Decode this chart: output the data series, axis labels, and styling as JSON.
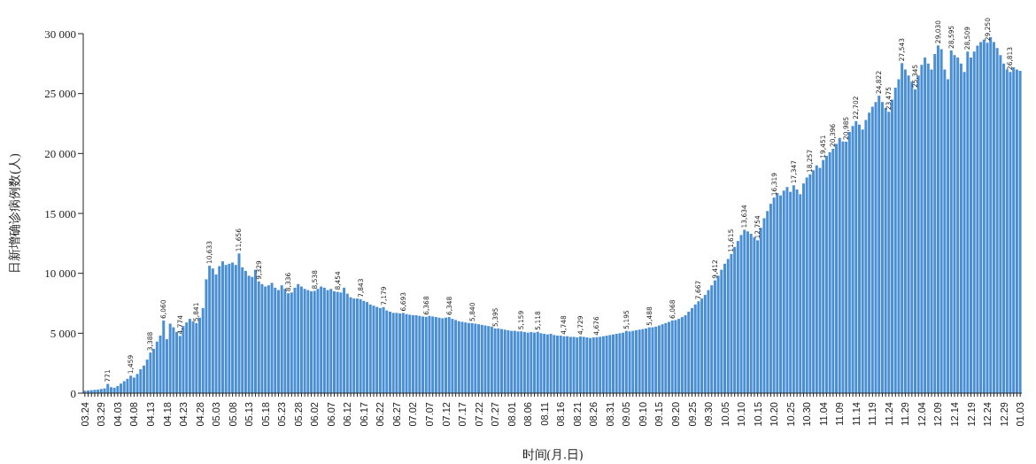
{
  "chart_data": {
    "type": "bar",
    "xlabel": "时间(月.日)",
    "ylabel": "日新增确诊病例数(人)",
    "color": "#4a8fd4",
    "grid": false,
    "ylim": [
      0,
      30000
    ],
    "yticks": [
      0,
      {
        "value": 5000,
        "label": "5 000"
      },
      {
        "value": 10000,
        "label": "10 000"
      },
      {
        "value": 15000,
        "label": "15 000"
      },
      {
        "value": 20000,
        "label": "20 000"
      },
      {
        "value": 25000,
        "label": "25 000"
      },
      {
        "value": 30000,
        "label": "30 000"
      }
    ],
    "categories": [
      "03.24",
      null,
      null,
      null,
      null,
      "03.29",
      null,
      null,
      null,
      null,
      "04.03",
      null,
      null,
      null,
      null,
      "04.08",
      null,
      null,
      null,
      null,
      "04.13",
      null,
      null,
      null,
      null,
      "04.18",
      null,
      null,
      null,
      null,
      "04.23",
      null,
      null,
      null,
      null,
      "04.28",
      null,
      null,
      null,
      null,
      "05.03",
      null,
      null,
      null,
      null,
      "05.08",
      null,
      null,
      null,
      null,
      "05.13",
      null,
      null,
      null,
      null,
      "05.18",
      null,
      null,
      null,
      null,
      "05.23",
      null,
      null,
      null,
      null,
      "05.28",
      null,
      null,
      null,
      null,
      "06.02",
      null,
      null,
      null,
      null,
      "06.07",
      null,
      null,
      null,
      null,
      "06.12",
      null,
      null,
      null,
      null,
      "06.17",
      null,
      null,
      null,
      null,
      "06.22",
      null,
      null,
      null,
      null,
      "06.27",
      null,
      null,
      null,
      null,
      "07.02",
      null,
      null,
      null,
      null,
      "07.07",
      null,
      null,
      null,
      null,
      "07.12",
      null,
      null,
      null,
      null,
      "07.17",
      null,
      null,
      null,
      null,
      "07.22",
      null,
      null,
      null,
      null,
      "07.27",
      null,
      null,
      null,
      null,
      "08.01",
      null,
      null,
      null,
      null,
      "08.06",
      null,
      null,
      null,
      null,
      "08.11",
      null,
      null,
      null,
      null,
      "08.16",
      null,
      null,
      null,
      null,
      "08.21",
      null,
      null,
      null,
      null,
      "08.26",
      null,
      null,
      null,
      null,
      "08.31",
      null,
      null,
      null,
      null,
      "09.05",
      null,
      null,
      null,
      null,
      "09.10",
      null,
      null,
      null,
      null,
      "09.15",
      null,
      null,
      null,
      null,
      "09.20",
      null,
      null,
      null,
      null,
      "09.25",
      null,
      null,
      null,
      null,
      "09.30",
      null,
      null,
      null,
      null,
      "10.05",
      null,
      null,
      null,
      null,
      "10.10",
      null,
      null,
      null,
      null,
      "10.15",
      null,
      null,
      null,
      null,
      "10.20",
      null,
      null,
      null,
      null,
      "10.25",
      null,
      null,
      null,
      null,
      "10.30",
      null,
      null,
      null,
      null,
      "11.04",
      null,
      null,
      null,
      null,
      "11.09",
      null,
      null,
      null,
      null,
      "11.14",
      null,
      null,
      null,
      null,
      "11.19",
      null,
      null,
      null,
      null,
      "11.24",
      null,
      null,
      null,
      null,
      "11.29",
      null,
      null,
      null,
      null,
      "12.04",
      null,
      null,
      null,
      null,
      "12.09",
      null,
      null,
      null,
      null,
      "12.14",
      null,
      null,
      null,
      null,
      "12.19",
      null,
      null,
      null,
      null,
      "12.24",
      null,
      null,
      null,
      null,
      "12.29",
      null,
      null,
      null,
      null,
      "01.03"
    ],
    "values": [
      200,
      220,
      250,
      280,
      300,
      350,
      400,
      771,
      500,
      450,
      600,
      800,
      1000,
      1200,
      1459,
      1300,
      1600,
      2000,
      2300,
      2800,
      3388,
      3700,
      4300,
      4800,
      6060,
      4500,
      5800,
      5500,
      5100,
      4774,
      5600,
      5900,
      6200,
      6000,
      5841,
      6300,
      7100,
      9500,
      10633,
      10400,
      9900,
      10600,
      11000,
      10700,
      10800,
      10900,
      10700,
      11656,
      10500,
      10200,
      9800,
      9700,
      10300,
      9329,
      9100,
      8900,
      9000,
      9200,
      8800,
      8600,
      9000,
      8700,
      8336,
      8400,
      8800,
      9100,
      8900,
      8700,
      8600,
      8500,
      8538,
      8700,
      8900,
      8800,
      8600,
      8700,
      8500,
      8454,
      8400,
      8800,
      8300,
      8000,
      7900,
      7900,
      7843,
      7700,
      7600,
      7400,
      7300,
      7200,
      7100,
      7179,
      6900,
      6800,
      6700,
      6700,
      6650,
      6693,
      6600,
      6550,
      6500,
      6500,
      6450,
      6400,
      6368,
      6450,
      6400,
      6350,
      6300,
      6250,
      6300,
      6348,
      6200,
      6100,
      6000,
      5950,
      5900,
      5850,
      5840,
      5800,
      5750,
      5700,
      5650,
      5600,
      5550,
      5395,
      5400,
      5350,
      5300,
      5250,
      5200,
      5200,
      5150,
      5159,
      5100,
      5050,
      5100,
      5050,
      5118,
      5000,
      4950,
      4900,
      4950,
      4850,
      4800,
      4800,
      4748,
      4750,
      4700,
      4700,
      4650,
      4729,
      4700,
      4650,
      4600,
      4650,
      4676,
      4700,
      4750,
      4800,
      4850,
      4900,
      4950,
      5000,
      5050,
      5195,
      5150,
      5200,
      5250,
      5300,
      5350,
      5400,
      5488,
      5500,
      5550,
      5650,
      5750,
      5850,
      5950,
      6068,
      6100,
      6200,
      6350,
      6500,
      6800,
      7100,
      7400,
      7667,
      7900,
      8200,
      8600,
      9000,
      9412,
      9800,
      10300,
      10800,
      11200,
      11615,
      12200,
      12700,
      13200,
      13634,
      13500,
      13300,
      13000,
      12754,
      13800,
      14600,
      15200,
      15800,
      16319,
      16700,
      16500,
      16900,
      17200,
      16800,
      17347,
      17000,
      16600,
      17500,
      18000,
      18257,
      18600,
      19000,
      18800,
      19451,
      19800,
      20100,
      20396,
      20800,
      21300,
      21000,
      20985,
      21800,
      22300,
      22702,
      22400,
      22000,
      22800,
      23400,
      23900,
      24300,
      24822,
      24300,
      23800,
      23475,
      24500,
      25500,
      26200,
      27543,
      27000,
      26500,
      26000,
      25345,
      26500,
      27400,
      28000,
      27500,
      27000,
      28300,
      29030,
      28700,
      27000,
      26200,
      28595,
      28200,
      28000,
      27500,
      26800,
      28509,
      28000,
      28500,
      29000,
      29300,
      29500,
      29250,
      29700,
      29300,
      28800,
      28200,
      27500,
      27000,
      26813,
      27200,
      27000,
      26900
    ],
    "value_labels": [
      null,
      null,
      null,
      null,
      null,
      null,
      null,
      "771",
      null,
      null,
      null,
      null,
      null,
      null,
      "1,459",
      null,
      null,
      null,
      null,
      null,
      "3,388",
      null,
      null,
      null,
      "6,060",
      null,
      null,
      null,
      null,
      "4,774",
      null,
      null,
      null,
      null,
      "5,841",
      null,
      null,
      null,
      "10,633",
      null,
      null,
      null,
      null,
      null,
      null,
      null,
      null,
      "11,656",
      null,
      null,
      null,
      null,
      null,
      "9,329",
      null,
      null,
      null,
      null,
      null,
      null,
      null,
      null,
      "8,336",
      null,
      null,
      null,
      null,
      null,
      null,
      null,
      "8,538",
      null,
      null,
      null,
      null,
      null,
      null,
      "8,454",
      null,
      null,
      null,
      null,
      null,
      null,
      "7,843",
      null,
      null,
      null,
      null,
      null,
      null,
      "7,179",
      null,
      null,
      null,
      null,
      null,
      "6,693",
      null,
      null,
      null,
      null,
      null,
      null,
      "6,368",
      null,
      null,
      null,
      null,
      null,
      null,
      "6,348",
      null,
      null,
      null,
      null,
      null,
      null,
      "5,840",
      null,
      null,
      null,
      null,
      null,
      null,
      "5,395",
      null,
      null,
      null,
      null,
      null,
      null,
      null,
      "5,159",
      null,
      null,
      null,
      null,
      "5,118",
      null,
      null,
      null,
      null,
      null,
      null,
      null,
      "4,748",
      null,
      null,
      null,
      null,
      "4,729",
      null,
      null,
      null,
      null,
      "4,676",
      null,
      null,
      null,
      null,
      null,
      null,
      null,
      null,
      "5,195",
      null,
      null,
      null,
      null,
      null,
      null,
      "5,488",
      null,
      null,
      null,
      null,
      null,
      null,
      "6,068",
      null,
      null,
      null,
      null,
      null,
      null,
      null,
      "7,667",
      null,
      null,
      null,
      null,
      "9,412",
      null,
      null,
      null,
      null,
      "11,615",
      null,
      null,
      null,
      "13,634",
      null,
      null,
      null,
      "12,754",
      null,
      null,
      null,
      null,
      "16,319",
      null,
      null,
      null,
      null,
      null,
      "17,347",
      null,
      null,
      null,
      null,
      "18,257",
      null,
      null,
      null,
      "19,451",
      null,
      null,
      "20,396",
      null,
      null,
      null,
      "20,985",
      null,
      null,
      "22,702",
      null,
      null,
      null,
      null,
      null,
      null,
      "24,822",
      null,
      null,
      "23,475",
      null,
      null,
      null,
      "27,543",
      null,
      null,
      null,
      "25,345",
      null,
      null,
      null,
      null,
      null,
      null,
      "29,030",
      null,
      null,
      null,
      "28,595",
      null,
      null,
      null,
      null,
      "28,509",
      null,
      null,
      null,
      null,
      null,
      "29,250",
      null,
      null,
      null,
      null,
      null,
      null,
      "26,813",
      null,
      null,
      null
    ]
  }
}
